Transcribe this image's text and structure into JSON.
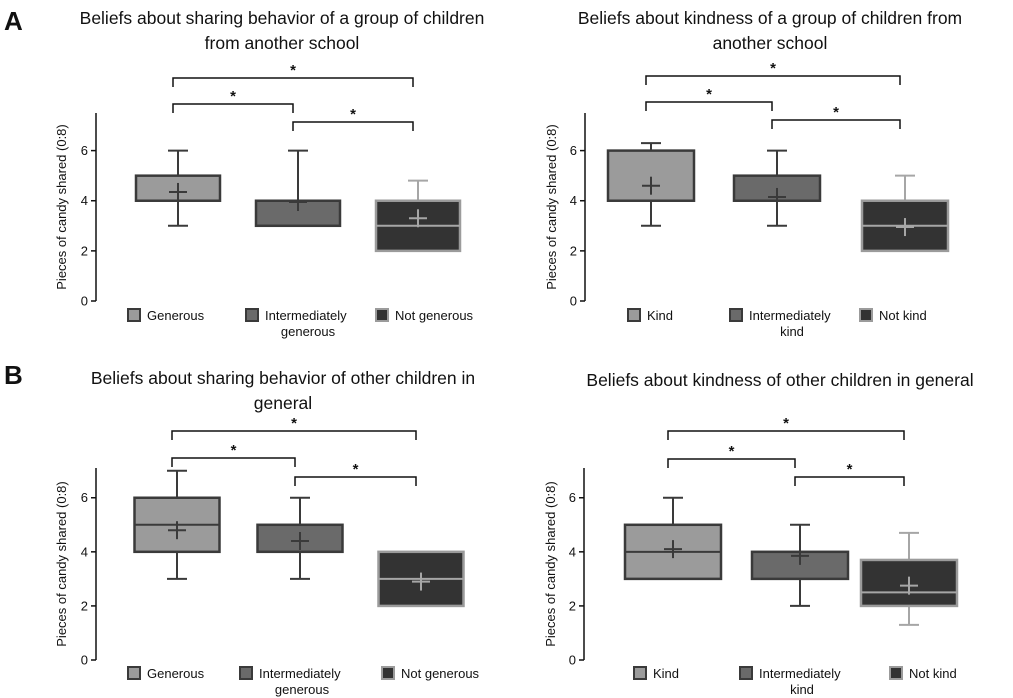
{
  "panel_labels": [
    "A",
    "B"
  ],
  "chart_data": [
    {
      "type": "box",
      "panel": "A",
      "title": [
        "Beliefs about sharing behavior of a group of children",
        "from another school"
      ],
      "ylabel": "Pieces of candy shared (0:8)",
      "ylim": [
        0,
        7.5
      ],
      "yticks": [
        0,
        2,
        4,
        6
      ],
      "series": [
        {
          "name": [
            "Generous"
          ],
          "whisker_low": 3,
          "q1": 4,
          "median": 4,
          "q3": 5,
          "whisker_high": 6,
          "mean": 4.35
        },
        {
          "name": [
            "Intermediately",
            "generous"
          ],
          "whisker_low": 3,
          "q1": 3,
          "median": 4,
          "q3": 4,
          "whisker_high": 6,
          "mean": 3.95
        },
        {
          "name": [
            "Not generous"
          ],
          "whisker_low": 2,
          "q1": 2,
          "median": 3,
          "q3": 4,
          "whisker_high": 4.8,
          "mean": 3.3
        }
      ],
      "significance": [
        {
          "pair": [
            0,
            2
          ],
          "label": "*"
        },
        {
          "pair": [
            0,
            1
          ],
          "label": "*"
        },
        {
          "pair": [
            1,
            2
          ],
          "label": "*"
        }
      ]
    },
    {
      "type": "box",
      "panel": "A",
      "title": [
        "Beliefs about kindness of a group of children from",
        "another school"
      ],
      "ylabel": "Pieces of candy shared (0:8)",
      "ylim": [
        0,
        7.5
      ],
      "yticks": [
        0,
        2,
        4,
        6
      ],
      "series": [
        {
          "name": [
            "Kind"
          ],
          "whisker_low": 3,
          "q1": 4,
          "median": 4,
          "q3": 6,
          "whisker_high": 6.3,
          "mean": 4.6
        },
        {
          "name": [
            "Intermediately",
            "kind"
          ],
          "whisker_low": 3,
          "q1": 4,
          "median": 4,
          "q3": 5,
          "whisker_high": 6,
          "mean": 4.15
        },
        {
          "name": [
            "Not kind"
          ],
          "whisker_low": 2,
          "q1": 2,
          "median": 3,
          "q3": 4,
          "whisker_high": 5,
          "mean": 2.95
        }
      ],
      "significance": [
        {
          "pair": [
            0,
            2
          ],
          "label": "*"
        },
        {
          "pair": [
            0,
            1
          ],
          "label": "*"
        },
        {
          "pair": [
            1,
            2
          ],
          "label": "*"
        }
      ]
    },
    {
      "type": "box",
      "panel": "B",
      "title": [
        "Beliefs about sharing behavior of other children in",
        "general"
      ],
      "ylabel": "Pieces of candy shared (0:8)",
      "ylim": [
        0,
        7.1
      ],
      "yticks": [
        0,
        2,
        4,
        6
      ],
      "series": [
        {
          "name": [
            "Generous"
          ],
          "whisker_low": 3,
          "q1": 4,
          "median": 5,
          "q3": 6,
          "whisker_high": 7,
          "mean": 4.8
        },
        {
          "name": [
            "Intermediately",
            "generous"
          ],
          "whisker_low": 3,
          "q1": 4,
          "median": 4,
          "q3": 5,
          "whisker_high": 6,
          "mean": 4.4
        },
        {
          "name": [
            "Not generous"
          ],
          "whisker_low": 2,
          "q1": 2,
          "median": 3,
          "q3": 4,
          "whisker_high": 4,
          "mean": 2.9
        }
      ],
      "significance": [
        {
          "pair": [
            0,
            2
          ],
          "label": "*"
        },
        {
          "pair": [
            0,
            1
          ],
          "label": "*"
        },
        {
          "pair": [
            1,
            2
          ],
          "label": "*"
        }
      ]
    },
    {
      "type": "box",
      "panel": "B",
      "title": [
        "Beliefs about kindness of other children in general"
      ],
      "ylabel": "Pieces of candy shared (0:8)",
      "ylim": [
        0,
        7.1
      ],
      "yticks": [
        0,
        2,
        4,
        6
      ],
      "series": [
        {
          "name": [
            "Kind"
          ],
          "whisker_low": 3,
          "q1": 3,
          "median": 4,
          "q3": 5,
          "whisker_high": 6,
          "mean": 4.1
        },
        {
          "name": [
            "Intermediately",
            "kind"
          ],
          "whisker_low": 2,
          "q1": 3,
          "median": 4,
          "q3": 4,
          "whisker_high": 5,
          "mean": 3.85
        },
        {
          "name": [
            "Not kind"
          ],
          "whisker_low": 1.3,
          "q1": 2,
          "median": 2.5,
          "q3": 3.7,
          "whisker_high": 4.7,
          "mean": 2.75
        }
      ],
      "significance": [
        {
          "pair": [
            0,
            2
          ],
          "label": "*"
        },
        {
          "pair": [
            0,
            1
          ],
          "label": "*"
        },
        {
          "pair": [
            1,
            2
          ],
          "label": "*"
        }
      ]
    }
  ],
  "colors": {
    "box_fills": [
      "#9b9b9b",
      "#6a6a6a",
      "#333333"
    ],
    "box_strokes": [
      "#3a3a3a",
      "#3a3a3a",
      "#9b9b9b"
    ],
    "line_inner": [
      "#3a3a3a",
      "#3a3a3a",
      "#a6a6a6"
    ],
    "axis": "#111111"
  }
}
